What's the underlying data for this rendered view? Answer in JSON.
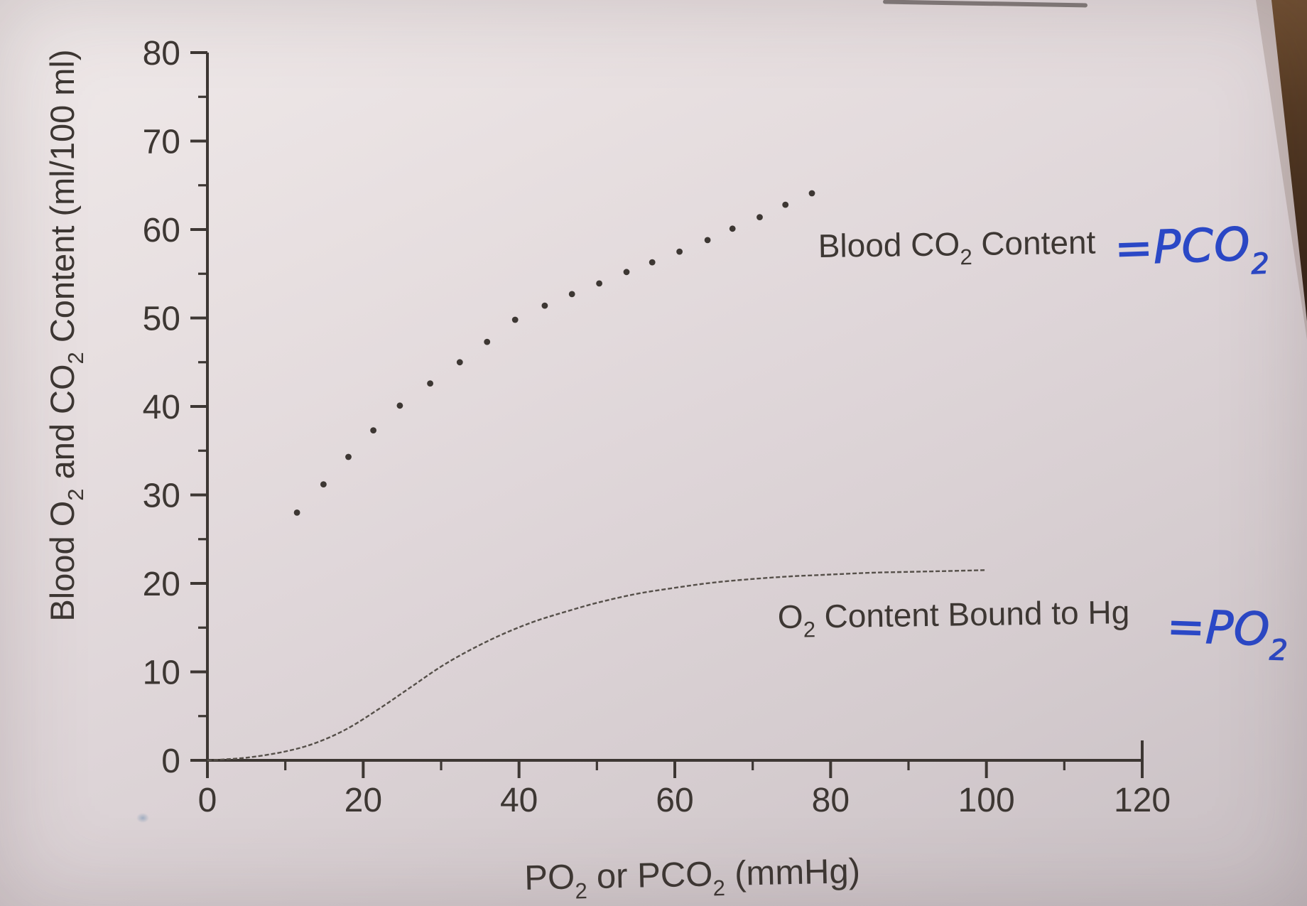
{
  "figure": {
    "ink_color": "#3d3733",
    "curve_color": "#56504a",
    "pen_color": "#2b48c6",
    "table_color": "#140c07",
    "wood_color": "#7c5835"
  },
  "chart_data": {
    "type": "line",
    "title": "",
    "xlabel": "PO2 or PCO2 (mmHg)",
    "ylabel": "Blood O2 and CO2 Content (ml/100 ml)",
    "xlim": [
      0,
      120
    ],
    "ylim": [
      0,
      80
    ],
    "grid": false,
    "legend_position": "inline-labels",
    "x_ticks_major": [
      0,
      20,
      40,
      60,
      80,
      100,
      120
    ],
    "x_ticks_minor": [
      10,
      30,
      50,
      70,
      90,
      110
    ],
    "y_ticks_major": [
      0,
      10,
      20,
      30,
      40,
      50,
      60,
      70,
      80
    ],
    "y_ticks_minor": [
      5,
      15,
      25,
      35,
      45,
      55,
      65,
      75
    ],
    "series": [
      {
        "name": "Blood CO2 Content",
        "style": "dotted",
        "points": [
          [
            11.5,
            28.0
          ],
          [
            14.9,
            31.2
          ],
          [
            18.1,
            34.3
          ],
          [
            21.3,
            37.3
          ],
          [
            24.7,
            40.1
          ],
          [
            28.6,
            42.6
          ],
          [
            32.4,
            45.0
          ],
          [
            35.9,
            47.3
          ],
          [
            39.5,
            49.8
          ],
          [
            43.3,
            51.4
          ],
          [
            46.8,
            52.7
          ],
          [
            50.3,
            53.9
          ],
          [
            53.8,
            55.2
          ],
          [
            57.1,
            56.3
          ],
          [
            60.6,
            57.5
          ],
          [
            64.2,
            58.8
          ],
          [
            67.4,
            60.1
          ],
          [
            70.9,
            61.4
          ],
          [
            74.2,
            62.8
          ],
          [
            77.6,
            64.1
          ]
        ]
      },
      {
        "name": "O2 Content Bound to Hg",
        "style": "solid",
        "points": [
          [
            0,
            0
          ],
          [
            5,
            0.3
          ],
          [
            10,
            1.0
          ],
          [
            14,
            2.0
          ],
          [
            18,
            3.6
          ],
          [
            22,
            5.8
          ],
          [
            26,
            8.2
          ],
          [
            30,
            10.6
          ],
          [
            34,
            12.6
          ],
          [
            38,
            14.3
          ],
          [
            42,
            15.7
          ],
          [
            46,
            16.8
          ],
          [
            50,
            17.8
          ],
          [
            55,
            18.8
          ],
          [
            60,
            19.5
          ],
          [
            65,
            20.1
          ],
          [
            70,
            20.5
          ],
          [
            75,
            20.8
          ],
          [
            80,
            21.0
          ],
          [
            85,
            21.2
          ],
          [
            90,
            21.3
          ],
          [
            95,
            21.4
          ],
          [
            100,
            21.5
          ]
        ]
      }
    ]
  },
  "labels": {
    "y_axis_title": {
      "p1": "Blood O",
      "s1": "2",
      "p2": " and CO",
      "s2": "2",
      "p3": " Content (ml/100 ml)"
    },
    "x_axis_title": {
      "p1": "PO",
      "s1": "2",
      "p2": " or PCO",
      "s2": "2",
      "p3": " (mmHg)"
    },
    "co2_series_label": {
      "p1": "Blood CO",
      "s1": "2",
      "p2": " Content"
    },
    "o2_series_label": {
      "p1": "O",
      "s1": "2",
      "p2": " Content Bound to Hg"
    },
    "handwritten_pco2": {
      "p1": "=PCO",
      "s1": "2"
    },
    "handwritten_po2": {
      "p1": "=PO",
      "s1": "2"
    }
  }
}
